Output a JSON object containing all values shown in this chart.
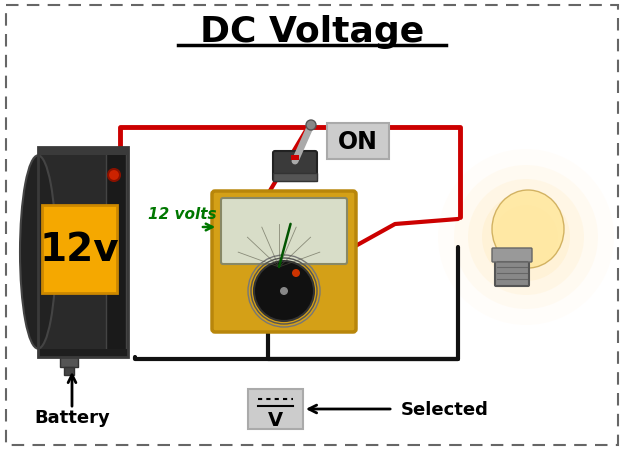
{
  "title": "DC Voltage",
  "title_fontsize": 26,
  "title_fontweight": "bold",
  "bg_color": "#ffffff",
  "border_color": "#666666",
  "label_battery": "Battery",
  "label_battery_voltage": "12v",
  "label_on": "ON",
  "label_12volts": "12 volts",
  "label_selected": "Selected",
  "wire_red_color": "#cc0000",
  "wire_black_color": "#111111",
  "battery_body_color": "#2a2a2a",
  "battery_body_edge": "#444444",
  "battery_side_color": "#3a3a3a",
  "battery_label_bg": "#f5a800",
  "battery_label_color": "#000000",
  "multimeter_yellow": "#d4a017",
  "multimeter_edge": "#b8860b",
  "multimeter_screen_bg": "#c8d0b0",
  "multimeter_dial_color": "#111111",
  "on_label_bg": "#cccccc",
  "on_label_edge": "#aaaaaa",
  "selected_label_bg": "#cccccc",
  "selected_label_edge": "#aaaaaa",
  "arrow_color": "#000000",
  "volts_arrow_color": "#007700",
  "volts_text_color": "#007700",
  "switch_body_color": "#555555",
  "switch_lever_color": "#999999",
  "bulb_glass_color": "#ffe8a0",
  "bulb_glow_color": "#ffdd88",
  "bulb_socket_color": "#777777",
  "wire_lw": 3.0
}
